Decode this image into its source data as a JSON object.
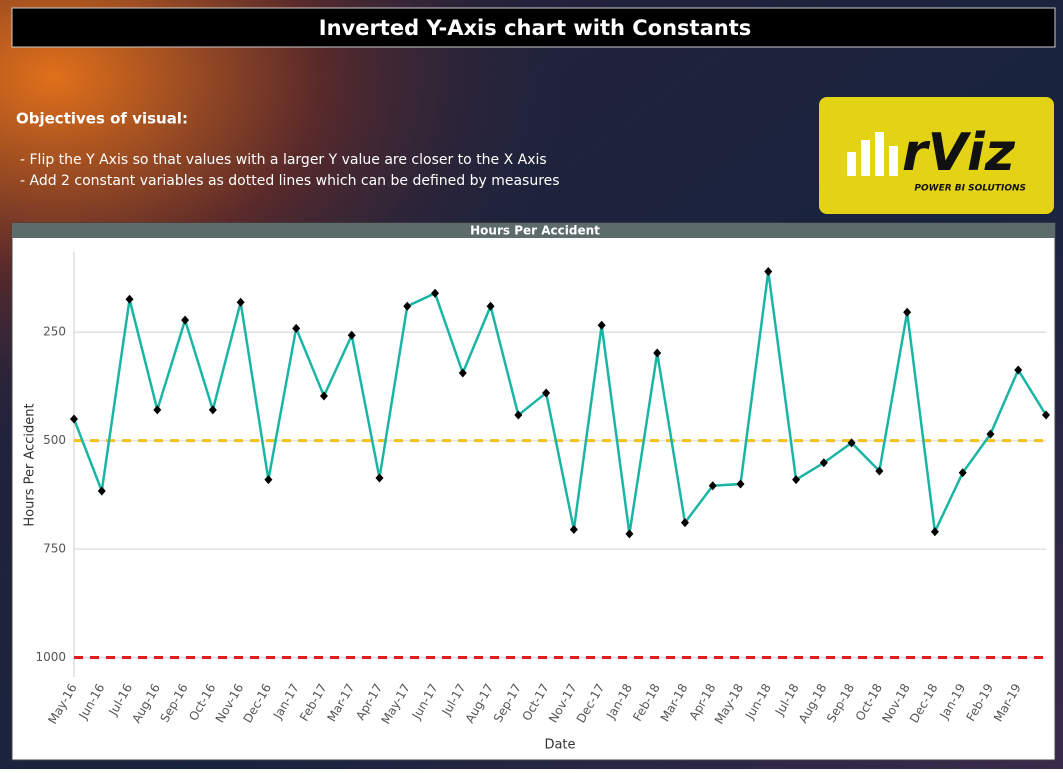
{
  "header": {
    "title": "Inverted Y-Axis chart with Constants"
  },
  "objectives": {
    "heading": "Objectives of visual:",
    "lines": [
      "- Flip the Y Axis so that values with a larger Y value are closer to the X Axis",
      "- Add 2 constant variables as dotted lines which can be defined by measures"
    ]
  },
  "logo": {
    "name": "rViz",
    "tagline": "POWER BI SOLUTIONS"
  },
  "chart_data": {
    "type": "line",
    "title": "Hours Per Accident",
    "x_label": "Date",
    "y_label": "Hours Per Accident",
    "categories": [
      "May-16",
      "Jun-16",
      "Jul-16",
      "Aug-16",
      "Sep-16",
      "Oct-16",
      "Nov-16",
      "Dec-16",
      "Jan-17",
      "Feb-17",
      "Mar-17",
      "Apr-17",
      "May-17",
      "Jun-17",
      "Jul-17",
      "Aug-17",
      "Sep-17",
      "Oct-17",
      "Nov-17",
      "Dec-17",
      "Jan-18",
      "Feb-18",
      "Mar-18",
      "Apr-18",
      "May-18",
      "Jun-18",
      "Jul-18",
      "Aug-18",
      "Sep-18",
      "Oct-18",
      "Nov-18",
      "Dec-18",
      "Jan-19",
      "Feb-19",
      "Mar-19",
      null
    ],
    "values": [
      450,
      616,
      174,
      429,
      222,
      429,
      181,
      590,
      241,
      397,
      257,
      586,
      190,
      160,
      344,
      190,
      441,
      390,
      705,
      234,
      715,
      298,
      689,
      604,
      600,
      110,
      590,
      551,
      505,
      570,
      204,
      710,
      574,
      485,
      337,
      441
    ],
    "color": "#1ab5a5",
    "marker_color": "#000000",
    "constant_lines": [
      {
        "value": 500,
        "color": "#f2c316"
      },
      {
        "value": 1000,
        "color": "#e8191a"
      }
    ],
    "ylim": [
      65,
      1045
    ],
    "yticks": [
      250,
      500,
      750,
      1000
    ],
    "inverted": true,
    "grid": true
  }
}
